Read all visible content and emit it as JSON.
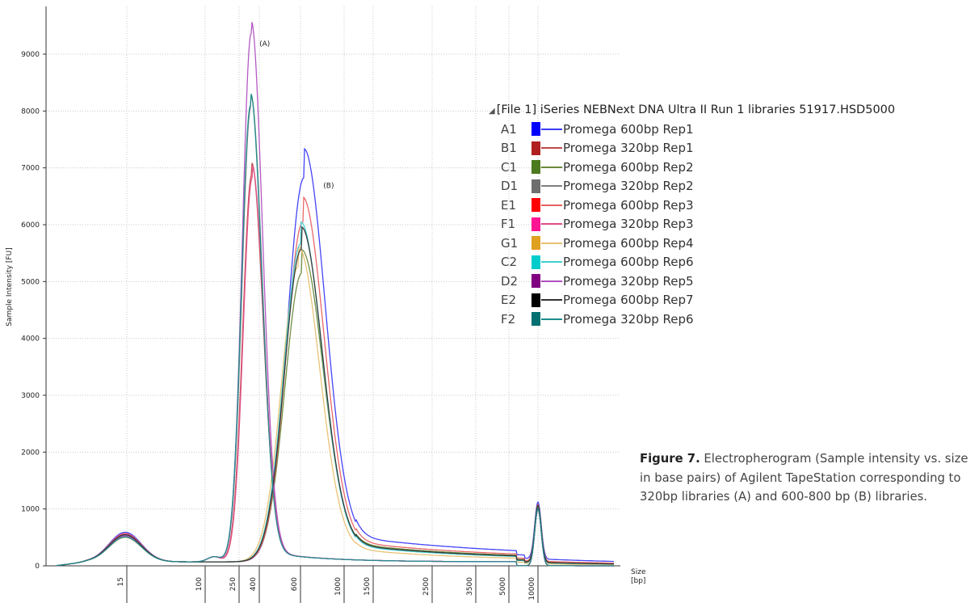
{
  "chart_data": {
    "type": "line",
    "title": "",
    "xlabel": "Size\n[bp]",
    "xlabel_lines": [
      "Size",
      "[bp]"
    ],
    "ylabel": "Sample Intensity [FU]",
    "x_scale": "ladder",
    "x_ticks": [
      "15",
      "100",
      "250",
      "400",
      "600",
      "1000",
      "1500",
      "2500",
      "3500",
      "5000",
      "10000"
    ],
    "ylim": [
      0,
      9500
    ],
    "y_ticks": [
      0,
      1000,
      2000,
      3000,
      4000,
      5000,
      6000,
      7000,
      8000,
      9000
    ],
    "grid": true,
    "legend_placement": "right",
    "peak_labels": [
      {
        "text": "(A)",
        "x": 320,
        "y": 9300
      },
      {
        "text": "(B)",
        "x": 700,
        "y": 6800
      }
    ],
    "series": [
      {
        "well": "A1",
        "name": "Promega 600bp Rep1",
        "color": "#3b3bf5",
        "swatch": "#0000ff",
        "type": "600",
        "peak": 6760,
        "shift": 1.5,
        "tail": 1.9
      },
      {
        "well": "B1",
        "name": "Promega 320bp Rep1",
        "color": "#c04848",
        "swatch": "#b02020",
        "type": "320",
        "peak": 6800,
        "shift": 0.4
      },
      {
        "well": "C1",
        "name": "Promega 600bp Rep2",
        "color": "#6a8a3a",
        "swatch": "#4e7a1f",
        "type": "600",
        "peak": 5080,
        "shift": 0.6,
        "tail": 1.2
      },
      {
        "well": "D1",
        "name": "Promega 320bp Rep2",
        "color": "#808080",
        "swatch": "#6e6e6e",
        "type": "320",
        "peak": 8000,
        "shift": -0.3
      },
      {
        "well": "E1",
        "name": "Promega 600bp Rep3",
        "color": "#e86060",
        "swatch": "#ff0000",
        "type": "600",
        "peak": 5980,
        "shift": 1.0,
        "tail": 1.4
      },
      {
        "well": "F1",
        "name": "Promega 320bp Rep3",
        "color": "#e0508a",
        "swatch": "#ff1493",
        "type": "320",
        "peak": 6750,
        "shift": 0.8
      },
      {
        "well": "G1",
        "name": "Promega 600bp Rep4",
        "color": "#e8c070",
        "swatch": "#e0a020",
        "type": "600",
        "peak": 5200,
        "shift": -0.8,
        "tail": 0.7
      },
      {
        "well": "C2",
        "name": "Promega 600bp Rep6",
        "color": "#40d0d0",
        "swatch": "#00cccc",
        "type": "600",
        "peak": 5600,
        "shift": 0.2,
        "tail": 1.0
      },
      {
        "well": "D2",
        "name": "Promega 320bp Rep5",
        "color": "#b050c0",
        "swatch": "#800080",
        "type": "320",
        "peak": 9300,
        "shift": 0.0
      },
      {
        "well": "E2",
        "name": "Promega 600bp Rep7",
        "color": "#333333",
        "swatch": "#000000",
        "type": "600",
        "peak": 5500,
        "shift": 0.4,
        "tail": 1.1
      },
      {
        "well": "F2",
        "name": "Promega 320bp Rep6",
        "color": "#1e8c8c",
        "swatch": "#007070",
        "type": "320",
        "peak": 8030,
        "shift": -0.6
      }
    ]
  },
  "legend": {
    "header": "[File 1] iSeries NEBNext DNA Ultra II Run 1 libraries 51917.HSD5000"
  },
  "caption": {
    "label": "Figure 7.",
    "text": " Electropherogram (Sample intensity vs. size in base pairs) of Agilent TapeStation corresponding to 320bp libraries (A) and 600-800 bp (B) libraries."
  }
}
